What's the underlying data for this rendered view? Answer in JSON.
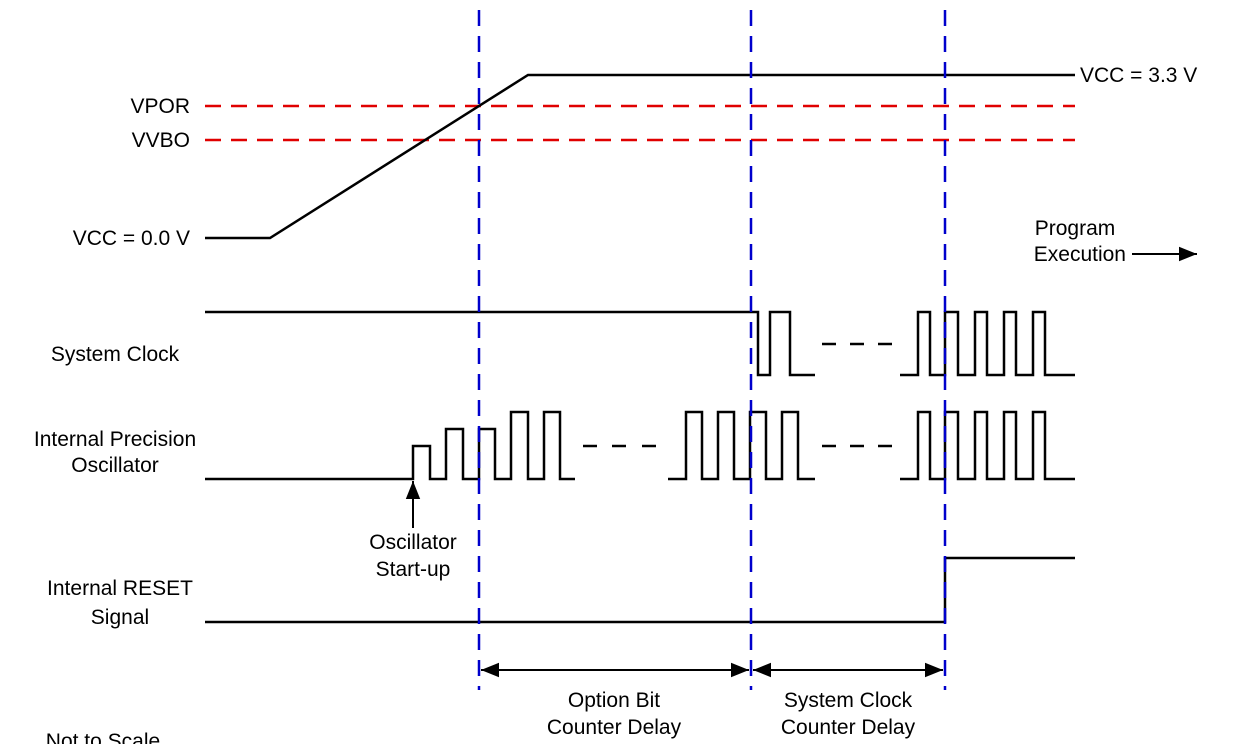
{
  "voltage_labels": {
    "vcc_high": "VCC = 3.3 V",
    "vpor": "VPOR",
    "vvbo": "VVBO",
    "vcc_low": "VCC = 0.0 V"
  },
  "program_execution": {
    "line1": "Program",
    "line2": "Execution"
  },
  "signals": {
    "system_clock": "System Clock",
    "ipo_line1": "Internal Precision",
    "ipo_line2": "Oscillator",
    "reset_line1": "Internal RESET",
    "reset_line2": "Signal"
  },
  "annotations": {
    "osc_line1": "Oscillator",
    "osc_line2": "Start-up",
    "option_line1": "Option Bit",
    "option_line2": "Counter Delay",
    "sysclk_line1": "System Clock",
    "sysclk_line2": "Counter Delay",
    "not_to_scale": "Not to Scale"
  },
  "colors": {
    "signal": "#000000",
    "threshold": "#e00000",
    "marker": "#0000cc"
  }
}
